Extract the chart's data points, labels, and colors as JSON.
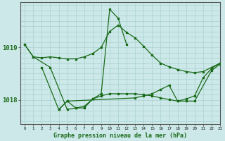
{
  "title": "Graphe pression niveau de la mer (hPa)",
  "bg_color": "#cce8e8",
  "grid_color": "#afd4d4",
  "line_color": "#1a6b1a",
  "xlim": [
    -0.5,
    23
  ],
  "ylim": [
    1017.55,
    1019.85
  ],
  "yticks": [
    1018,
    1019
  ],
  "xticks": [
    0,
    1,
    2,
    3,
    4,
    5,
    6,
    7,
    8,
    9,
    10,
    11,
    12,
    13,
    14,
    15,
    16,
    17,
    18,
    19,
    20,
    21,
    22,
    23
  ],
  "series2": {
    "line1_x": [
      0,
      1,
      2,
      3,
      4,
      5,
      6,
      7,
      8,
      9,
      10,
      11,
      12,
      13,
      14,
      15,
      16,
      17,
      18,
      19,
      20,
      21,
      22,
      23
    ],
    "line1_y": [
      1019.05,
      1018.82,
      1018.8,
      1018.82,
      1018.8,
      1018.78,
      1018.78,
      1018.82,
      1018.88,
      1019.0,
      1019.3,
      1019.42,
      1019.28,
      1019.18,
      1019.02,
      1018.85,
      1018.7,
      1018.63,
      1018.58,
      1018.54,
      1018.52,
      1018.54,
      1018.62,
      1018.7
    ],
    "line2_x": [
      0,
      1,
      3,
      5,
      6,
      7,
      8,
      9,
      10,
      11,
      12
    ],
    "line2_y": [
      1019.05,
      1018.82,
      1018.62,
      1017.82,
      1017.85,
      1017.85,
      1018.02,
      1018.12,
      1019.72,
      1019.55,
      1019.05
    ],
    "line3_x": [
      2,
      4,
      5,
      6,
      7,
      8,
      9,
      10,
      11,
      12,
      13,
      14,
      15,
      16,
      17,
      18,
      19,
      20,
      22,
      23
    ],
    "line3_y": [
      1018.62,
      1017.82,
      1017.98,
      1017.85,
      1017.88,
      1018.02,
      1018.08,
      1018.12,
      1018.12,
      1018.12,
      1018.12,
      1018.1,
      1018.08,
      1018.04,
      1018.01,
      1017.98,
      1017.98,
      1017.98,
      1018.56,
      1018.68
    ],
    "line4_x": [
      4,
      5,
      13,
      14,
      15,
      16,
      17,
      18,
      19,
      20,
      21,
      22,
      23
    ],
    "line4_y": [
      1017.82,
      1017.98,
      1018.04,
      1018.08,
      1018.12,
      1018.2,
      1018.28,
      1017.98,
      1018.02,
      1018.08,
      1018.42,
      1018.6,
      1018.7
    ]
  }
}
